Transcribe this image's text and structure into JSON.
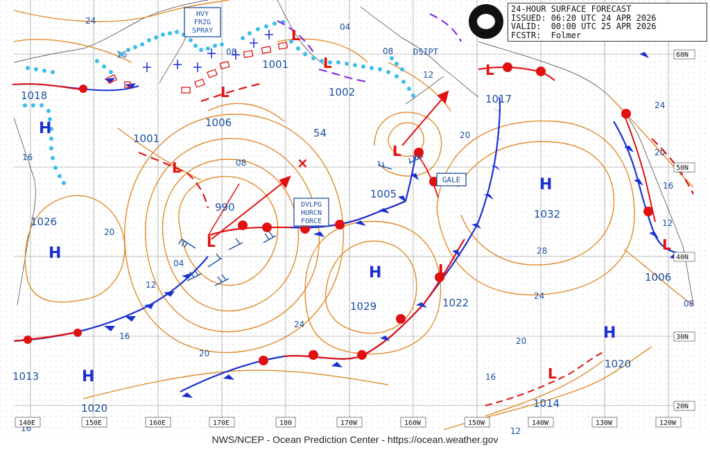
{
  "header": {
    "line1": "24-HOUR SURFACE FORECAST",
    "line2": "ISSUED: 06:20 UTC 24 APR 2026",
    "line3": "VALID:  00:00 UTC 25 APR 2026",
    "line4": "FCSTR:  Folmer"
  },
  "logo_text": "NOAA",
  "footer": "NWS/NCEP - Ocean Prediction Center - https://ocean.weather.gov",
  "lat_labels": [
    "60N",
    "50N",
    "40N",
    "30N",
    "20N"
  ],
  "lon_labels": [
    "140E",
    "150E",
    "160E",
    "170E",
    "180",
    "170W",
    "160W",
    "150W",
    "140W",
    "130W",
    "120W"
  ],
  "highs": [
    {
      "label": "H",
      "pressure": "1018"
    },
    {
      "label": "H",
      "pressure": "1026"
    },
    {
      "label": "H",
      "pressure": "1013"
    },
    {
      "label": "H",
      "pressure": "1020"
    },
    {
      "label": "H",
      "pressure": "1029"
    },
    {
      "label": "H",
      "pressure": "1032"
    },
    {
      "label": "H",
      "pressure": "1020"
    }
  ],
  "lows": [
    {
      "pressure": "1001"
    },
    {
      "pressure": "1001"
    },
    {
      "pressure": "1002"
    },
    {
      "pressure": "1006"
    },
    {
      "pressure": "990"
    },
    {
      "pressure": "1005"
    },
    {
      "pressure": "1017"
    },
    {
      "pressure": "1022"
    },
    {
      "pressure": "1014"
    },
    {
      "pressure": "1006"
    }
  ],
  "warnings": {
    "hvy_frzg_spray": [
      "HVY",
      "FRZG",
      "SPRAY"
    ],
    "dvlpg_hurcn_force": [
      "DVLPG",
      "HURCN",
      "FORCE"
    ],
    "gale": "GALE",
    "dsipt": "DSIPT",
    "fifty_four": "54"
  },
  "isobar_labels": [
    "24",
    "16",
    "04",
    "08",
    "08",
    "12",
    "16",
    "20",
    "12",
    "04",
    "08",
    "20",
    "24",
    "20",
    "16",
    "20",
    "24",
    "28",
    "24",
    "20",
    "16",
    "12",
    "08",
    "16",
    "16",
    "12"
  ]
}
